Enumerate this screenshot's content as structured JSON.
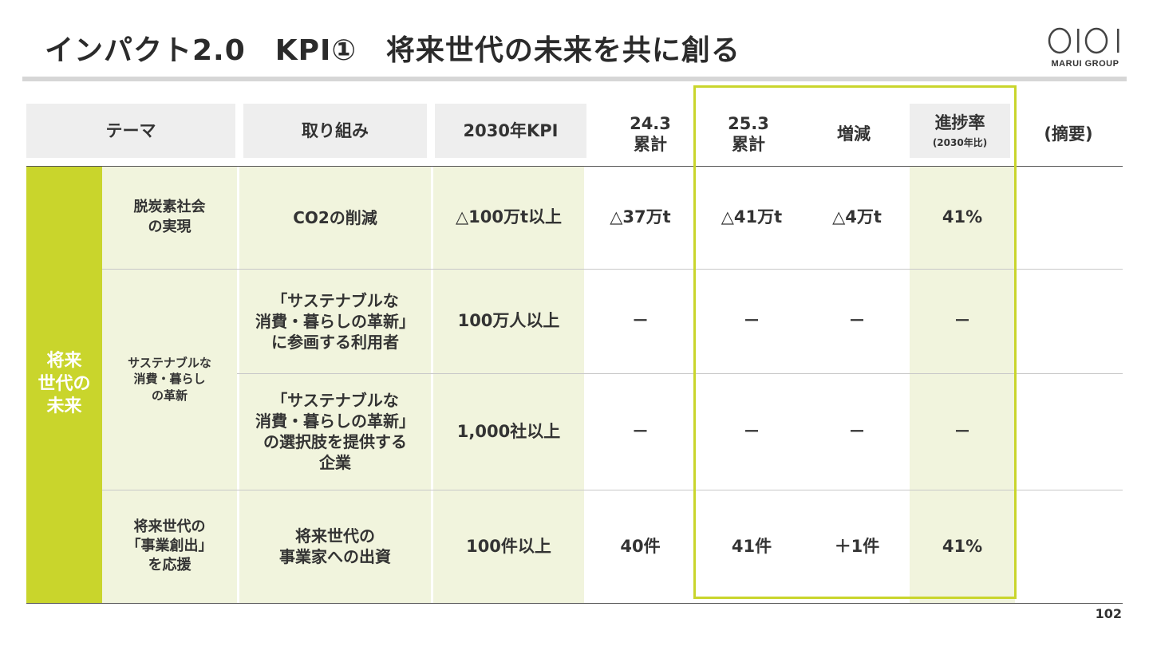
{
  "title": "インパクト2.0　KPI①　将来世代の未来を共に創る",
  "logo": {
    "text": "MARUI GROUP",
    "mark_name": "oioi-logo",
    "accent_color": "#c9d52c"
  },
  "headers": {
    "theme": "テーマ",
    "action": "取り組み",
    "kpi": "2030年KPI",
    "prev_line1": "24.3",
    "prev_line2": "累計",
    "curr_line1": "25.3",
    "curr_line2": "累計",
    "change": "増減",
    "progress": "進捗率",
    "progress_sub": "(2030年比)",
    "summary": "(摘要)"
  },
  "category": {
    "line1": "将来",
    "line2": "世代の",
    "line3": "未来"
  },
  "rows": [
    {
      "theme": [
        "脱炭素社会",
        "の実現"
      ],
      "action": [
        "CO2の削減"
      ],
      "kpi": "△100万t以上",
      "prev": "△37万t",
      "curr": "△41万t",
      "change": "△4万t",
      "progress": "41%"
    },
    {
      "theme": [
        "サステナブルな",
        "消費・暮らし",
        "の革新"
      ],
      "action": [
        "「サステナブルな",
        "消費・暮らしの革新」",
        "に参画する利用者"
      ],
      "kpi": "100万人以上",
      "prev": "－",
      "curr": "－",
      "change": "－",
      "progress": "－"
    },
    {
      "action": [
        "「サステナブルな",
        "消費・暮らしの革新」",
        "の選択肢を提供する",
        "企業"
      ],
      "kpi": "1,000社以上",
      "prev": "－",
      "curr": "－",
      "change": "－",
      "progress": "－"
    },
    {
      "theme": [
        "将来世代の",
        "「事業創出」",
        "を応援"
      ],
      "action": [
        "将来世代の",
        "事業家への出資"
      ],
      "kpi": "100件以上",
      "prev": "40件",
      "curr": "41件",
      "change": "＋1件",
      "progress": "41%"
    }
  ],
  "page_number": "102"
}
